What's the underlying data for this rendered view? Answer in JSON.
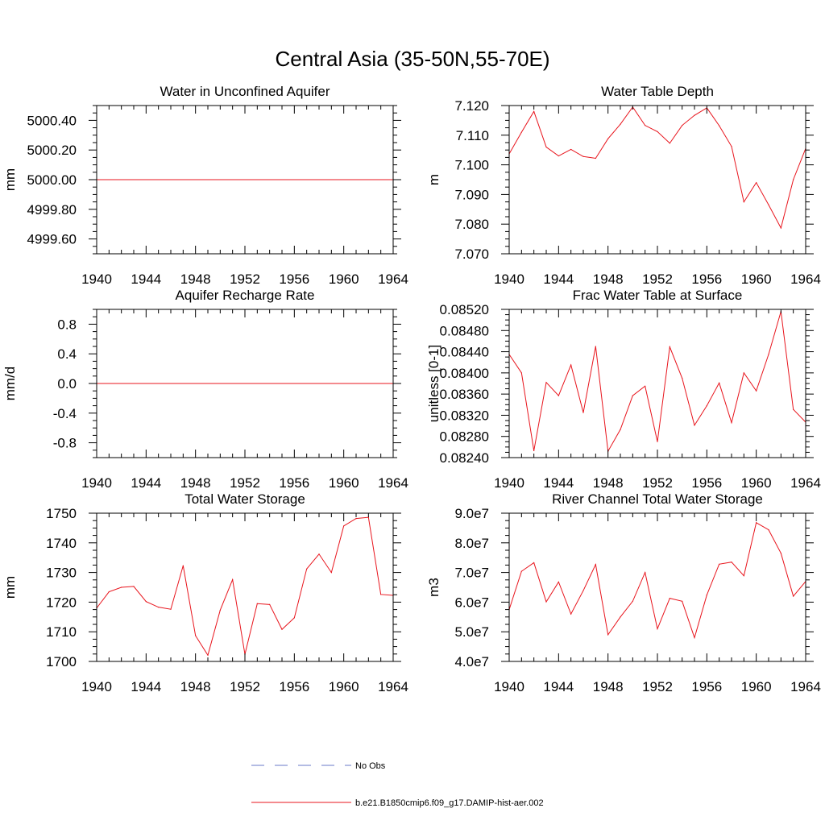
{
  "figure": {
    "title": "Central Asia (35-50N,55-70E)"
  },
  "legend": {
    "entries": [
      {
        "label": "No Obs",
        "color": "#6a78c8",
        "dash": true
      },
      {
        "label": "b.e21.B1850cmip6.f09_g17.DAMIP-hist-aer.002",
        "color": "#e8141c",
        "dash": false
      }
    ]
  },
  "chart_data": [
    {
      "type": "line",
      "title": "Water in Unconfined Aquifer",
      "ylabel": "mm",
      "xlim": [
        1940,
        1964
      ],
      "ylim": [
        4999.5,
        5000.5
      ],
      "xticks": [
        1940,
        1944,
        1948,
        1952,
        1956,
        1960,
        1964
      ],
      "yticks": [
        4999.6,
        4999.8,
        5000.0,
        5000.2,
        5000.4
      ],
      "ytick_labels": [
        "4999.60",
        "4999.80",
        "5000.00",
        "5000.20",
        "5000.40"
      ],
      "x": [
        1940,
        1964
      ],
      "series": [
        {
          "name": "b.e21.B1850cmip6.f09_g17.DAMIP-hist-aer.002",
          "color": "#e8141c",
          "values": [
            5000.0,
            5000.0
          ]
        }
      ]
    },
    {
      "type": "line",
      "title": "Water Table Depth",
      "ylabel": "m",
      "xlim": [
        1940,
        1964
      ],
      "ylim": [
        7.07,
        7.12
      ],
      "xticks": [
        1940,
        1944,
        1948,
        1952,
        1956,
        1960,
        1964
      ],
      "yticks": [
        7.07,
        7.08,
        7.09,
        7.1,
        7.11,
        7.12
      ],
      "ytick_labels": [
        "7.070",
        "7.080",
        "7.090",
        "7.100",
        "7.110",
        "7.120"
      ],
      "x": [
        1940,
        1941,
        1942,
        1943,
        1944,
        1945,
        1946,
        1947,
        1948,
        1949,
        1950,
        1951,
        1952,
        1953,
        1954,
        1955,
        1956,
        1957,
        1958,
        1959,
        1960,
        1961,
        1962,
        1963,
        1964
      ],
      "series": [
        {
          "name": "b.e21.B1850cmip6.f09_g17.DAMIP-hist-aer.002",
          "color": "#e8141c",
          "values": [
            7.1037,
            7.111,
            7.118,
            7.106,
            7.103,
            7.1052,
            7.1028,
            7.1022,
            7.1088,
            7.1137,
            7.1195,
            7.1133,
            7.1112,
            7.1073,
            7.1133,
            7.1167,
            7.1192,
            7.1132,
            7.1062,
            7.0875,
            7.094,
            7.0865,
            7.0787,
            7.095,
            7.1055
          ]
        }
      ]
    },
    {
      "type": "line",
      "title": "Aquifer Recharge Rate",
      "ylabel": "mm/d",
      "xlim": [
        1940,
        1964
      ],
      "ylim": [
        -1.0,
        1.0
      ],
      "xticks": [
        1940,
        1944,
        1948,
        1952,
        1956,
        1960,
        1964
      ],
      "yticks": [
        -0.8,
        -0.4,
        0.0,
        0.4,
        0.8
      ],
      "ytick_labels": [
        "-0.8",
        "-0.4",
        "0.0",
        "0.4",
        "0.8"
      ],
      "x": [
        1940,
        1964
      ],
      "series": [
        {
          "name": "b.e21.B1850cmip6.f09_g17.DAMIP-hist-aer.002",
          "color": "#e8141c",
          "values": [
            0.0,
            0.0
          ]
        }
      ]
    },
    {
      "type": "line",
      "title": "Frac Water Table at Surface",
      "ylabel": "unitless [0-1]",
      "xlim": [
        1940,
        1964
      ],
      "ylim": [
        0.0824,
        0.0852
      ],
      "xticks": [
        1940,
        1944,
        1948,
        1952,
        1956,
        1960,
        1964
      ],
      "yticks": [
        0.0824,
        0.0828,
        0.0832,
        0.0836,
        0.084,
        0.0844,
        0.0848,
        0.0852
      ],
      "ytick_labels": [
        "0.08240",
        "0.08280",
        "0.08320",
        "0.08360",
        "0.08400",
        "0.08440",
        "0.08480",
        "0.08520"
      ],
      "x": [
        1940,
        1941,
        1942,
        1943,
        1944,
        1945,
        1946,
        1947,
        1948,
        1949,
        1950,
        1951,
        1952,
        1953,
        1954,
        1955,
        1956,
        1957,
        1958,
        1959,
        1960,
        1961,
        1962,
        1963,
        1964
      ],
      "series": [
        {
          "name": "b.e21.B1850cmip6.f09_g17.DAMIP-hist-aer.002",
          "color": "#e8141c",
          "values": [
            0.08435,
            0.084,
            0.08253,
            0.08382,
            0.08357,
            0.08415,
            0.08325,
            0.0845,
            0.08252,
            0.08293,
            0.08357,
            0.08375,
            0.0827,
            0.08449,
            0.0839,
            0.08301,
            0.08338,
            0.08381,
            0.08306,
            0.084,
            0.08366,
            0.08435,
            0.08516,
            0.08331,
            0.08307
          ]
        }
      ]
    },
    {
      "type": "line",
      "title": "Total Water Storage",
      "ylabel": "mm",
      "xlim": [
        1940,
        1964
      ],
      "ylim": [
        1700,
        1750
      ],
      "xticks": [
        1940,
        1944,
        1948,
        1952,
        1956,
        1960,
        1964
      ],
      "yticks": [
        1700,
        1710,
        1720,
        1730,
        1740,
        1750
      ],
      "ytick_labels": [
        "1700",
        "1710",
        "1720",
        "1730",
        "1740",
        "1750"
      ],
      "x": [
        1940,
        1941,
        1942,
        1943,
        1944,
        1945,
        1946,
        1947,
        1948,
        1949,
        1950,
        1951,
        1952,
        1953,
        1954,
        1955,
        1956,
        1957,
        1958,
        1959,
        1960,
        1961,
        1962,
        1963,
        1964
      ],
      "series": [
        {
          "name": "b.e21.B1850cmip6.f09_g17.DAMIP-hist-aer.002",
          "color": "#e8141c",
          "values": [
            1718,
            1723.5,
            1725,
            1725.3,
            1720.2,
            1718.3,
            1717.6,
            1732.3,
            1708.7,
            1702.1,
            1717.3,
            1727.6,
            1702.4,
            1719.5,
            1719.2,
            1710.8,
            1714.7,
            1731.2,
            1736.2,
            1730,
            1745.7,
            1748.2,
            1748.6,
            1722.6,
            1722.3
          ]
        }
      ]
    },
    {
      "type": "line",
      "title": "River Channel Total Water Storage",
      "ylabel": "m3",
      "xlim": [
        1940,
        1964
      ],
      "ylim": [
        40000000,
        90000000
      ],
      "xticks": [
        1940,
        1944,
        1948,
        1952,
        1956,
        1960,
        1964
      ],
      "yticks": [
        40000000,
        50000000,
        60000000,
        70000000,
        80000000,
        90000000
      ],
      "ytick_labels": [
        "4.0e7",
        "5.0e7",
        "6.0e7",
        "7.0e7",
        "8.0e7",
        "9.0e7"
      ],
      "x": [
        1940,
        1941,
        1942,
        1943,
        1944,
        1945,
        1946,
        1947,
        1948,
        1949,
        1950,
        1951,
        1952,
        1953,
        1954,
        1955,
        1956,
        1957,
        1958,
        1959,
        1960,
        1961,
        1962,
        1963,
        1964
      ],
      "series": [
        {
          "name": "b.e21.B1850cmip6.f09_g17.DAMIP-hist-aer.002",
          "color": "#e8141c",
          "values": [
            57500000,
            70400000,
            73300000,
            60100000,
            66800000,
            56000000,
            63900000,
            72700000,
            49000000,
            55000000,
            60300000,
            70000000,
            51000000,
            61300000,
            60300000,
            48000000,
            62400000,
            72800000,
            73500000,
            68900000,
            86800000,
            84400000,
            76500000,
            62000000,
            67000000
          ]
        }
      ]
    }
  ]
}
